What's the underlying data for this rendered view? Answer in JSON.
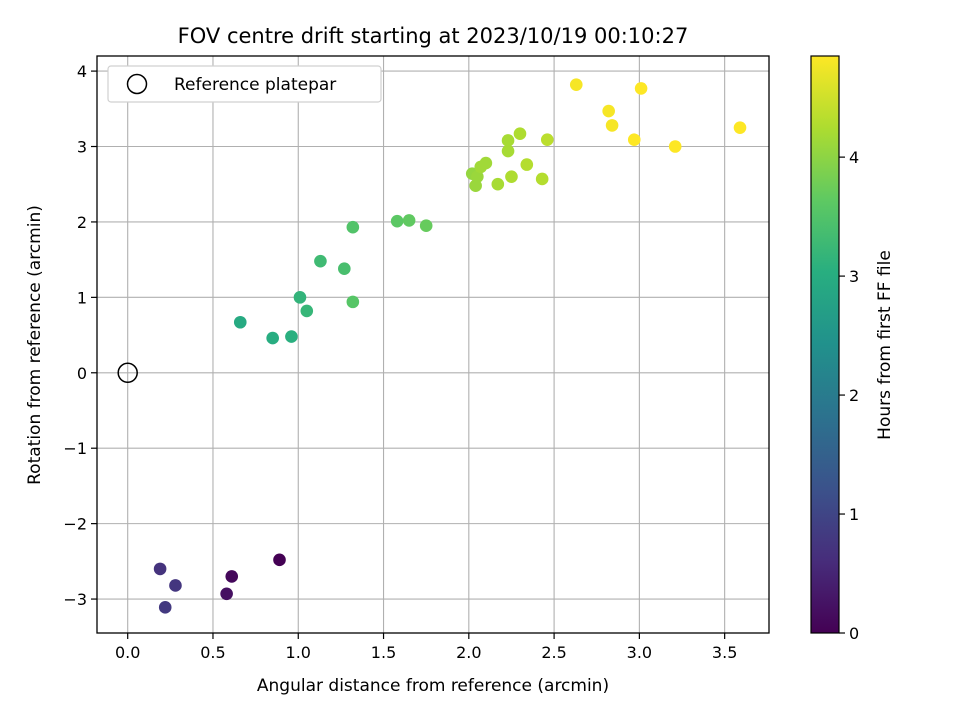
{
  "chart_data": {
    "type": "scatter",
    "title": "FOV centre drift starting at 2023/10/19 00:10:27",
    "xlabel": "Angular distance from reference (arcmin)",
    "ylabel": "Rotation from reference (arcmin)",
    "xlim": [
      -0.18,
      3.76
    ],
    "ylim": [
      -3.45,
      4.2
    ],
    "xticks": [
      "0.0",
      "0.5",
      "1.0",
      "1.5",
      "2.0",
      "2.5",
      "3.0",
      "3.5"
    ],
    "xtick_values": [
      0,
      0.5,
      1.0,
      1.5,
      2.0,
      2.5,
      3.0,
      3.5
    ],
    "yticks": [
      "−3",
      "−2",
      "−1",
      "0",
      "1",
      "2",
      "3",
      "4"
    ],
    "ytick_values": [
      -3,
      -2,
      -1,
      0,
      1,
      2,
      3,
      4
    ],
    "grid": true,
    "legend": {
      "placement": "top-left",
      "entries": [
        "Reference platepar"
      ]
    },
    "reference_point": {
      "x": 0.0,
      "y": 0.0
    },
    "colorbar": {
      "label": "Hours from first FF file",
      "colormap": "viridis",
      "range": [
        0,
        4.85
      ],
      "ticks": [
        "0",
        "1",
        "2",
        "3",
        "4"
      ],
      "tick_values": [
        0,
        1,
        2,
        3,
        4
      ]
    },
    "points": [
      {
        "x": 0.89,
        "y": -2.48,
        "hours": 0.0
      },
      {
        "x": 0.61,
        "y": -2.7,
        "hours": 0.1
      },
      {
        "x": 0.58,
        "y": -2.93,
        "hours": 0.2
      },
      {
        "x": 0.19,
        "y": -2.6,
        "hours": 0.7
      },
      {
        "x": 0.28,
        "y": -2.82,
        "hours": 0.75
      },
      {
        "x": 0.22,
        "y": -3.11,
        "hours": 0.8
      },
      {
        "x": 0.66,
        "y": 0.67,
        "hours": 2.95
      },
      {
        "x": 0.85,
        "y": 0.46,
        "hours": 3.0
      },
      {
        "x": 0.96,
        "y": 0.48,
        "hours": 3.05
      },
      {
        "x": 1.01,
        "y": 1.0,
        "hours": 3.15
      },
      {
        "x": 1.05,
        "y": 0.82,
        "hours": 3.2
      },
      {
        "x": 1.13,
        "y": 1.48,
        "hours": 3.3
      },
      {
        "x": 1.27,
        "y": 1.38,
        "hours": 3.4
      },
      {
        "x": 1.32,
        "y": 1.93,
        "hours": 3.5
      },
      {
        "x": 1.32,
        "y": 0.94,
        "hours": 3.55
      },
      {
        "x": 1.58,
        "y": 2.01,
        "hours": 3.6
      },
      {
        "x": 1.65,
        "y": 2.02,
        "hours": 3.65
      },
      {
        "x": 1.75,
        "y": 1.95,
        "hours": 3.7
      },
      {
        "x": 2.02,
        "y": 2.64,
        "hours": 4.05
      },
      {
        "x": 2.04,
        "y": 2.48,
        "hours": 4.1
      },
      {
        "x": 2.05,
        "y": 2.6,
        "hours": 4.1
      },
      {
        "x": 2.07,
        "y": 2.73,
        "hours": 4.15
      },
      {
        "x": 2.1,
        "y": 2.78,
        "hours": 4.15
      },
      {
        "x": 2.17,
        "y": 2.5,
        "hours": 4.2
      },
      {
        "x": 2.23,
        "y": 3.08,
        "hours": 4.2
      },
      {
        "x": 2.23,
        "y": 2.94,
        "hours": 4.2
      },
      {
        "x": 2.25,
        "y": 2.6,
        "hours": 4.25
      },
      {
        "x": 2.3,
        "y": 3.17,
        "hours": 4.25
      },
      {
        "x": 2.34,
        "y": 2.76,
        "hours": 4.3
      },
      {
        "x": 2.43,
        "y": 2.57,
        "hours": 4.3
      },
      {
        "x": 2.46,
        "y": 3.09,
        "hours": 4.35
      },
      {
        "x": 2.63,
        "y": 3.82,
        "hours": 4.8
      },
      {
        "x": 2.82,
        "y": 3.47,
        "hours": 4.8
      },
      {
        "x": 2.84,
        "y": 3.28,
        "hours": 4.8
      },
      {
        "x": 3.01,
        "y": 3.77,
        "hours": 4.85
      },
      {
        "x": 2.97,
        "y": 3.09,
        "hours": 4.85
      },
      {
        "x": 3.21,
        "y": 3.0,
        "hours": 4.85
      },
      {
        "x": 3.59,
        "y": 3.25,
        "hours": 4.85
      }
    ]
  }
}
